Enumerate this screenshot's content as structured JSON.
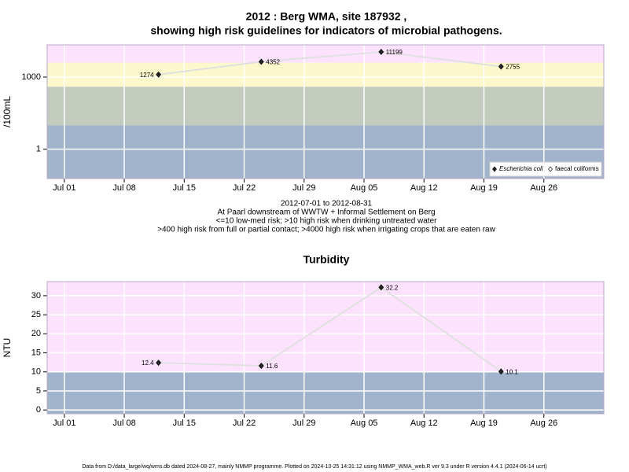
{
  "chart_data": [
    {
      "type": "line",
      "title": [
        "2012 : Berg WMA, site 187932 ,",
        "showing high risk guidelines for indicators of microbial pathogens."
      ],
      "subtitle": [
        "2012-07-01 to 2012-08-31",
        "At Paarl downstream of WWTW + Informal Settlement on Berg",
        "<=10 low-med risk; >10 high risk when drinking untreated water",
        ">400 high risk from full or partial contact; >4000 high risk when irrigating crops that are eaten raw"
      ],
      "ylabel": "/100mL",
      "log_y": true,
      "x": [
        "2012-07-12",
        "2012-07-24",
        "2012-08-07",
        "2012-08-21"
      ],
      "series": [
        {
          "name": "Escherichia coli",
          "color": "#222222",
          "values": [
            1274,
            4352,
            11199,
            2755
          ]
        },
        {
          "name": "faecal coliforms",
          "color": "#ffffff",
          "values": [
            null,
            null,
            null,
            null
          ]
        }
      ],
      "thresholds": [
        10,
        400,
        4000
      ],
      "band_colors": [
        "#a2b4cc",
        "#c3cbbf",
        "#fdf8cc",
        "#fde2fd"
      ],
      "xlim": [
        "2012-06-29",
        "2012-09-02"
      ],
      "xticks": [
        {
          "value": "2012-07-01",
          "label": "Jul 01"
        },
        {
          "value": "2012-07-08",
          "label": "Jul 08"
        },
        {
          "value": "2012-07-15",
          "label": "Jul 15"
        },
        {
          "value": "2012-07-22",
          "label": "Jul 22"
        },
        {
          "value": "2012-07-29",
          "label": "Jul 29"
        },
        {
          "value": "2012-08-05",
          "label": "Aug 05"
        },
        {
          "value": "2012-08-12",
          "label": "Aug 12"
        },
        {
          "value": "2012-08-19",
          "label": "Aug 19"
        },
        {
          "value": "2012-08-26",
          "label": "Aug 26"
        }
      ],
      "ylim": [
        0.06,
        22000
      ],
      "yticks": [
        1,
        1000
      ],
      "grid": true,
      "legend": "bottom-right"
    },
    {
      "type": "line",
      "title": [
        "Turbidity"
      ],
      "ylabel": "NTU",
      "log_y": false,
      "x": [
        "2012-07-12",
        "2012-07-24",
        "2012-08-07",
        "2012-08-21"
      ],
      "series": [
        {
          "name": "Turbidity",
          "color": "#222222",
          "values": [
            12.4,
            11.6,
            32.2,
            10.1
          ]
        }
      ],
      "thresholds": [
        10
      ],
      "band_colors": [
        "#a2b4cc",
        "#fde2fd"
      ],
      "xlim": [
        "2012-06-29",
        "2012-09-02"
      ],
      "xticks": [
        {
          "value": "2012-07-01",
          "label": "Jul 01"
        },
        {
          "value": "2012-07-08",
          "label": "Jul 08"
        },
        {
          "value": "2012-07-15",
          "label": "Jul 15"
        },
        {
          "value": "2012-07-22",
          "label": "Jul 22"
        },
        {
          "value": "2012-07-29",
          "label": "Jul 29"
        },
        {
          "value": "2012-08-05",
          "label": "Aug 05"
        },
        {
          "value": "2012-08-12",
          "label": "Aug 12"
        },
        {
          "value": "2012-08-19",
          "label": "Aug 19"
        },
        {
          "value": "2012-08-26",
          "label": "Aug 26"
        }
      ],
      "ylim": [
        -1,
        33.7
      ],
      "yticks": [
        0,
        5,
        10,
        15,
        20,
        25,
        30
      ],
      "grid": true
    }
  ],
  "footer": "Data from D:/data_large/wq/wms.db dated 2024-08-27, mainly NMMP programme. Plotted on 2024-10-25 14:31:12 using NMMP_WMA_web.R ver 9.3 under R version 4.4.1 (2024-06-14 ucrt)"
}
